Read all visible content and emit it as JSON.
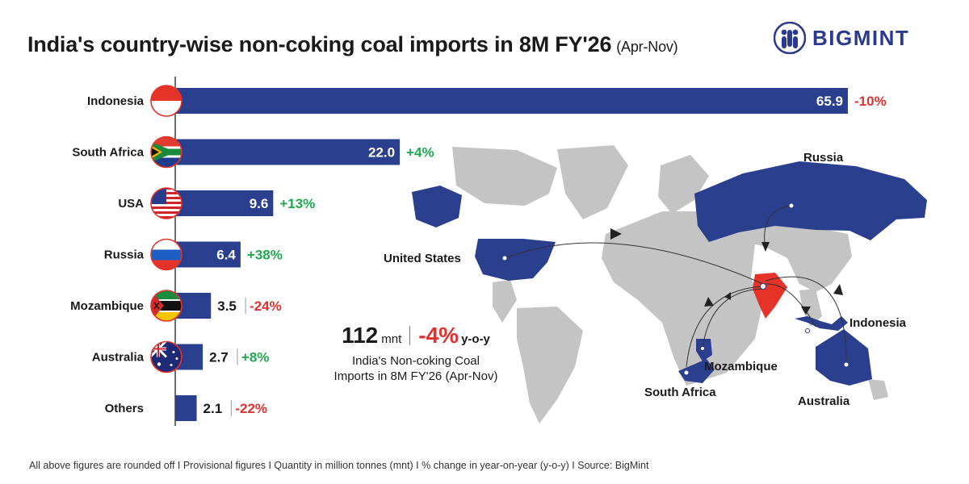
{
  "header": {
    "title": "India's country-wise non-coking coal imports in 8M FY'26",
    "subtitle": "(Apr-Nov)",
    "brand": "BIGMINT"
  },
  "chart_data": {
    "type": "bar",
    "orientation": "horizontal",
    "categories": [
      "Indonesia",
      "South Africa",
      "USA",
      "Russia",
      "Mozambique",
      "Australia",
      "Others"
    ],
    "values": [
      65.9,
      22.0,
      9.6,
      6.4,
      3.5,
      2.7,
      2.1
    ],
    "value_labels": [
      "65.9",
      "22.0",
      "9.6",
      "6.4",
      "3.5",
      "2.7",
      "2.1"
    ],
    "yoy_change": [
      "-10%",
      "+4%",
      "+13%",
      "+38%",
      "-24%",
      "+8%",
      "-22%"
    ],
    "bar_color": "#2b3f8f",
    "positive_color": "#1fa84f",
    "negative_color": "#e03131",
    "xlim": [
      0,
      65.9
    ]
  },
  "summary": {
    "value": "112",
    "unit": "mnt",
    "change": "-4%",
    "change_label": "y-o-y",
    "desc_line1": "India's Non-coking Coal",
    "desc_line2": "Imports in 8M FY'26 (Apr-Nov)"
  },
  "map_labels": {
    "russia": "Russia",
    "united_states": "United States",
    "indonesia": "Indonesia",
    "mozambique": "Mozambique",
    "south_africa": "South Africa",
    "australia": "Australia"
  },
  "map_colors": {
    "land": "#c4c4c4",
    "highlight": "#2b3f8f",
    "india": "#e5332a"
  },
  "footer": "All above figures are rounded off  I  Provisional figures  I  Quantity in million tonnes (mnt)  I  % change in year-on-year (y-o-y)  I  Source: BigMint"
}
